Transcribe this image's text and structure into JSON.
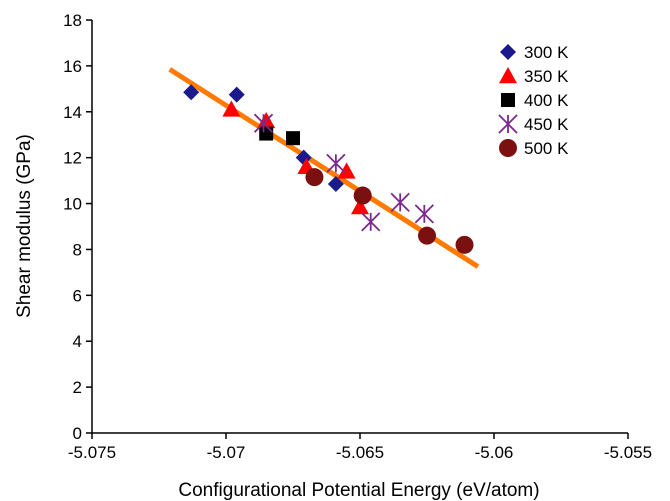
{
  "chart_data": {
    "type": "scatter",
    "title": "",
    "xlabel": "Configurational Potential Energy (eV/atom)",
    "ylabel": "Shear modulus (GPa)",
    "xlim": [
      -5.075,
      -5.055
    ],
    "ylim": [
      0,
      18
    ],
    "xticks": [
      -5.075,
      -5.07,
      -5.065,
      -5.06,
      -5.055
    ],
    "xtick_labels": [
      "-5.075",
      "-5.07",
      "-5.065",
      "-5.06",
      "-5.055"
    ],
    "yticks": [
      0,
      2,
      4,
      6,
      8,
      10,
      12,
      14,
      16,
      18
    ],
    "ytick_labels": [
      "0",
      "2",
      "4",
      "6",
      "8",
      "10",
      "12",
      "14",
      "16",
      "18"
    ],
    "grid": false,
    "legend_position": "top-right",
    "series": [
      {
        "name": "300 K",
        "marker": "diamond",
        "color": "#1a1a8c",
        "points": [
          [
            -5.0713,
            14.85
          ],
          [
            -5.0696,
            14.75
          ],
          [
            -5.0671,
            12.0
          ],
          [
            -5.0659,
            10.85
          ]
        ]
      },
      {
        "name": "350 K",
        "marker": "triangle",
        "color": "#ff0000",
        "points": [
          [
            -5.0698,
            14.1
          ],
          [
            -5.0685,
            13.6
          ],
          [
            -5.067,
            11.6
          ],
          [
            -5.0655,
            11.4
          ],
          [
            -5.065,
            9.85
          ]
        ]
      },
      {
        "name": "400 K",
        "marker": "square",
        "color": "#000000",
        "points": [
          [
            -5.0685,
            13.05
          ],
          [
            -5.0675,
            12.85
          ]
        ]
      },
      {
        "name": "450 K",
        "marker": "star",
        "color": "#7a2a8a",
        "points": [
          [
            -5.0686,
            13.5
          ],
          [
            -5.0659,
            11.75
          ],
          [
            -5.0646,
            9.2
          ],
          [
            -5.0635,
            10.05
          ],
          [
            -5.0626,
            9.55
          ]
        ]
      },
      {
        "name": "500 K",
        "marker": "circle",
        "color": "#7a1010",
        "points": [
          [
            -5.0667,
            11.15
          ],
          [
            -5.0649,
            10.35
          ],
          [
            -5.0625,
            8.6
          ],
          [
            -5.0611,
            8.2
          ]
        ]
      }
    ],
    "trendline": {
      "color": "#ff7a00",
      "points": [
        [
          -5.0721,
          15.85
        ],
        [
          -5.0606,
          7.25
        ]
      ]
    }
  }
}
